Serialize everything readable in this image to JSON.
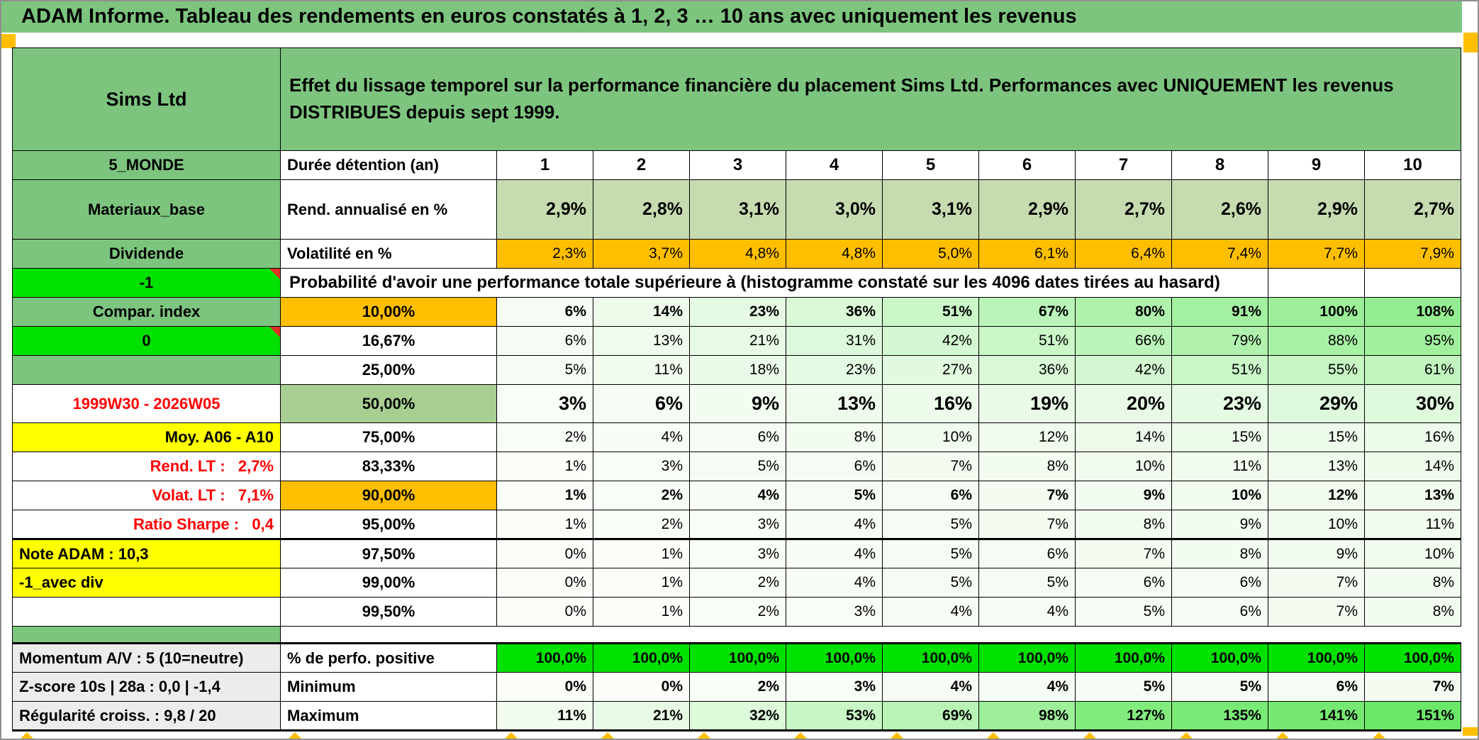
{
  "page": {
    "title": "ADAM Informe. Tableau des rendements en euros constatés à 1, 2, 3 … 10 ans avec uniquement les revenus"
  },
  "colors": {
    "header_green": "#7DC57F",
    "bright_green": "#00E100",
    "orange": "#FFBF00",
    "yellow": "#FFFF00",
    "sage_green": "#C6DBB0",
    "mid_green": "#A9CE91",
    "gray_label": "#ECECEC",
    "red_text": "#FF0000",
    "scale_from": [
      251,
      253,
      249
    ],
    "scale_to": [
      108,
      232,
      104
    ],
    "scale_max": 150
  },
  "sheet": {
    "product": "Sims Ltd",
    "description": "Effet du lissage temporel sur la performance financière du placement Sims Ltd. Performances avec UNIQUEMENT les revenus DISTRIBUES depuis sept 1999.",
    "rows": [
      {
        "type": "row",
        "label": "5_MONDE",
        "labelStyle": "green",
        "head": "Durée détention (an)",
        "headStyle": "whiteL",
        "values": [
          "1",
          "2",
          "3",
          "4",
          "5",
          "6",
          "7",
          "8",
          "9",
          "10"
        ],
        "valueStyle": "colhead"
      },
      {
        "type": "row",
        "cls": "tall",
        "label": "Materiaux_base",
        "labelStyle": "green",
        "head": "Rend. annualisé en %",
        "headStyle": "whiteL",
        "values": [
          "2,9%",
          "2,8%",
          "3,1%",
          "3,0%",
          "3,1%",
          "2,9%",
          "2,7%",
          "2,6%",
          "2,9%",
          "2,7%"
        ],
        "valueStyle": "sage",
        "bold": true
      },
      {
        "type": "row",
        "label": "Dividende",
        "labelStyle": "green",
        "head": "Volatilité en %",
        "headStyle": "whiteL",
        "values": [
          "2,3%",
          "3,7%",
          "4,8%",
          "4,8%",
          "5,0%",
          "6,1%",
          "6,4%",
          "7,4%",
          "7,7%",
          "7,9%"
        ],
        "valueStyle": "orangeV"
      },
      {
        "type": "span",
        "label": "-1",
        "labelStyle": "bright",
        "marker": true,
        "text": "Probabilité d'avoir une performance totale supérieure à (histogramme constaté sur les 4096 dates tirées au hasard)"
      },
      {
        "type": "row",
        "label": "Compar. index",
        "labelStyle": "green",
        "head": "10,00%",
        "headStyle": "orange",
        "values": [
          "6%",
          "14%",
          "23%",
          "36%",
          "51%",
          "67%",
          "80%",
          "91%",
          "100%",
          "108%"
        ],
        "valueStyle": "scale",
        "bold": true
      },
      {
        "type": "row",
        "label": "0",
        "labelStyle": "bright",
        "marker": true,
        "head": "16,67%",
        "headStyle": "whiteC",
        "values": [
          "6%",
          "13%",
          "21%",
          "31%",
          "42%",
          "51%",
          "66%",
          "79%",
          "88%",
          "95%"
        ],
        "valueStyle": "scale"
      },
      {
        "type": "row",
        "label": "",
        "labelStyle": "green",
        "head": "25,00%",
        "headStyle": "whiteC",
        "values": [
          "5%",
          "11%",
          "18%",
          "23%",
          "27%",
          "36%",
          "42%",
          "51%",
          "55%",
          "61%"
        ],
        "valueStyle": "scale"
      },
      {
        "type": "row",
        "cls": "big",
        "label": "1999W30 - 2026W05",
        "labelStyle": "redC",
        "head": "50,00%",
        "headStyle": "mid",
        "values": [
          "3%",
          "6%",
          "9%",
          "13%",
          "16%",
          "19%",
          "20%",
          "23%",
          "29%",
          "30%"
        ],
        "valueStyle": "scale",
        "bold": true
      },
      {
        "type": "row",
        "label": "Moy. A06 - A10",
        "labelStyle": "yellowR",
        "head": "75,00%",
        "headStyle": "whiteC",
        "values": [
          "2%",
          "4%",
          "6%",
          "8%",
          "10%",
          "12%",
          "14%",
          "15%",
          "15%",
          "16%"
        ],
        "valueStyle": "scale"
      },
      {
        "type": "row",
        "label": "Rend. LT :   2,7%",
        "labelStyle": "redR",
        "head": "83,33%",
        "headStyle": "whiteC",
        "values": [
          "1%",
          "3%",
          "5%",
          "6%",
          "7%",
          "8%",
          "10%",
          "11%",
          "13%",
          "14%"
        ],
        "valueStyle": "scale"
      },
      {
        "type": "row",
        "label": "Volat. LT :   7,1%",
        "labelStyle": "redR",
        "head": "90,00%",
        "headStyle": "orange",
        "values": [
          "1%",
          "2%",
          "4%",
          "5%",
          "6%",
          "7%",
          "9%",
          "10%",
          "12%",
          "13%"
        ],
        "valueStyle": "scale",
        "bold": true
      },
      {
        "type": "row",
        "label": "Ratio Sharpe :   0,4",
        "labelStyle": "redR",
        "head": "95,00%",
        "headStyle": "whiteC",
        "values": [
          "1%",
          "2%",
          "3%",
          "4%",
          "5%",
          "7%",
          "8%",
          "9%",
          "10%",
          "11%"
        ],
        "valueStyle": "scale"
      },
      {
        "type": "row",
        "cls": "thicktop",
        "label": "Note ADAM : 10,3",
        "labelStyle": "yellowL",
        "head": "97,50%",
        "headStyle": "whiteC",
        "values": [
          "0%",
          "1%",
          "3%",
          "4%",
          "5%",
          "6%",
          "7%",
          "8%",
          "9%",
          "10%"
        ],
        "valueStyle": "scale"
      },
      {
        "type": "row",
        "label": "-1_avec div",
        "labelStyle": "yellowL",
        "head": "99,00%",
        "headStyle": "whiteC",
        "values": [
          "0%",
          "1%",
          "2%",
          "4%",
          "5%",
          "5%",
          "6%",
          "6%",
          "7%",
          "8%"
        ],
        "valueStyle": "scale"
      },
      {
        "type": "row",
        "label": "",
        "labelStyle": "plain",
        "head": "99,50%",
        "headStyle": "whiteC",
        "values": [
          "0%",
          "1%",
          "2%",
          "3%",
          "4%",
          "4%",
          "5%",
          "6%",
          "7%",
          "8%"
        ],
        "valueStyle": "scale"
      },
      {
        "type": "separator",
        "label": ""
      },
      {
        "type": "row",
        "cls": "blocktop",
        "label": "Momentum A/V : 5 (10=neutre)",
        "labelStyle": "grayL",
        "head": "% de perfo. positive",
        "headStyle": "whiteL",
        "values": [
          "100,0%",
          "100,0%",
          "100,0%",
          "100,0%",
          "100,0%",
          "100,0%",
          "100,0%",
          "100,0%",
          "100,0%",
          "100,0%"
        ],
        "valueStyle": "brightV",
        "bold": true
      },
      {
        "type": "row",
        "label": "Z-score 10s | 28a : 0,0 | -1,4",
        "labelStyle": "grayL",
        "head": "Minimum",
        "headStyle": "whiteL",
        "values": [
          "0%",
          "0%",
          "2%",
          "3%",
          "4%",
          "4%",
          "5%",
          "5%",
          "6%",
          "7%"
        ],
        "valueStyle": "scale",
        "bold": true
      },
      {
        "type": "row",
        "cls": "blockbottom",
        "label": "Régularité croiss. : 9,8 / 20",
        "labelStyle": "grayL",
        "head": "Maximum",
        "headStyle": "whiteL",
        "values": [
          "11%",
          "21%",
          "32%",
          "53%",
          "69%",
          "98%",
          "127%",
          "135%",
          "141%",
          "151%"
        ],
        "valueStyle": "scale",
        "bold": true
      }
    ]
  }
}
